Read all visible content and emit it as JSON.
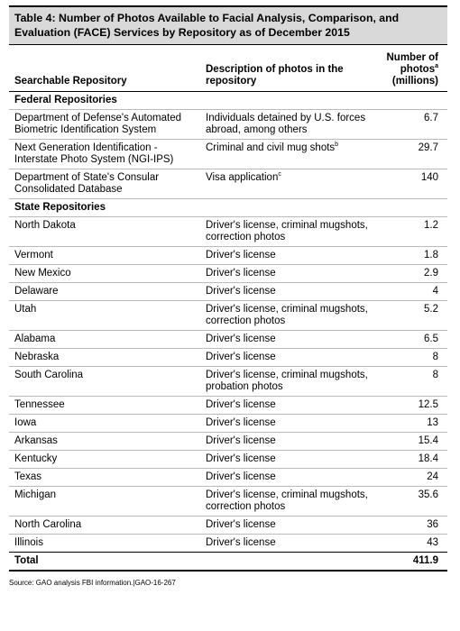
{
  "header": {
    "title": "Table 4: Number of Photos Available to Facial Analysis, Comparison, and Evaluation (FACE) Services by Repository as of December 2015"
  },
  "table": {
    "columns": [
      {
        "label": "Searchable Repository"
      },
      {
        "label": "Description of photos in the repository"
      },
      {
        "label": "Number of photos",
        "note": "a",
        "unit": "(millions)"
      }
    ],
    "sections": [
      {
        "title": "Federal Repositories",
        "rows": [
          {
            "repository": "Department of Defense's Automated Biometric Identification System",
            "description": "Individuals detained by U.S. forces abroad, among others",
            "photos": 6.7
          },
          {
            "repository": "Next Generation Identification - Interstate Photo System (NGI-IPS)",
            "description": "Criminal and civil mug shots",
            "note": "b",
            "photos": 29.7
          },
          {
            "repository": "Department of State's Consular Consolidated Database",
            "description": "Visa application",
            "note": "c",
            "photos": 140
          }
        ]
      },
      {
        "title": "State Repositories",
        "rows": [
          {
            "repository": "North Dakota",
            "description": "Driver's license, criminal mugshots, correction photos",
            "photos": 1.2
          },
          {
            "repository": "Vermont",
            "description": "Driver's license",
            "photos": 1.8
          },
          {
            "repository": "New Mexico",
            "description": "Driver's license",
            "photos": 2.9
          },
          {
            "repository": "Delaware",
            "description": "Driver's license",
            "photos": 4
          },
          {
            "repository": "Utah",
            "description": "Driver's license, criminal mugshots, correction photos",
            "photos": 5.2
          },
          {
            "repository": "Alabama",
            "description": "Driver's license",
            "photos": 6.5
          },
          {
            "repository": "Nebraska",
            "description": "Driver's license",
            "photos": 8
          },
          {
            "repository": "South Carolina",
            "description": "Driver's license, criminal mugshots, probation photos",
            "photos": 8
          },
          {
            "repository": "Tennessee",
            "description": "Driver's license",
            "photos": 12.5
          },
          {
            "repository": "Iowa",
            "description": "Driver's license",
            "photos": 13
          },
          {
            "repository": "Arkansas",
            "description": "Driver's license",
            "photos": 15.4
          },
          {
            "repository": "Kentucky",
            "description": "Driver's license",
            "photos": 18.4
          },
          {
            "repository": "Texas",
            "description": "Driver's license",
            "photos": 24
          },
          {
            "repository": "Michigan",
            "description": "Driver's license, criminal mugshots, correction photos",
            "photos": 35.6
          },
          {
            "repository": "North Carolina",
            "description": "Driver's license",
            "photos": 36
          },
          {
            "repository": "Illinois",
            "description": "Driver's license",
            "photos": 43
          }
        ]
      }
    ],
    "total": {
      "label": "Total",
      "photos": 411.9
    }
  },
  "footer": {
    "source": "Source: GAO analysis FBI information.|GAO-16-267"
  }
}
